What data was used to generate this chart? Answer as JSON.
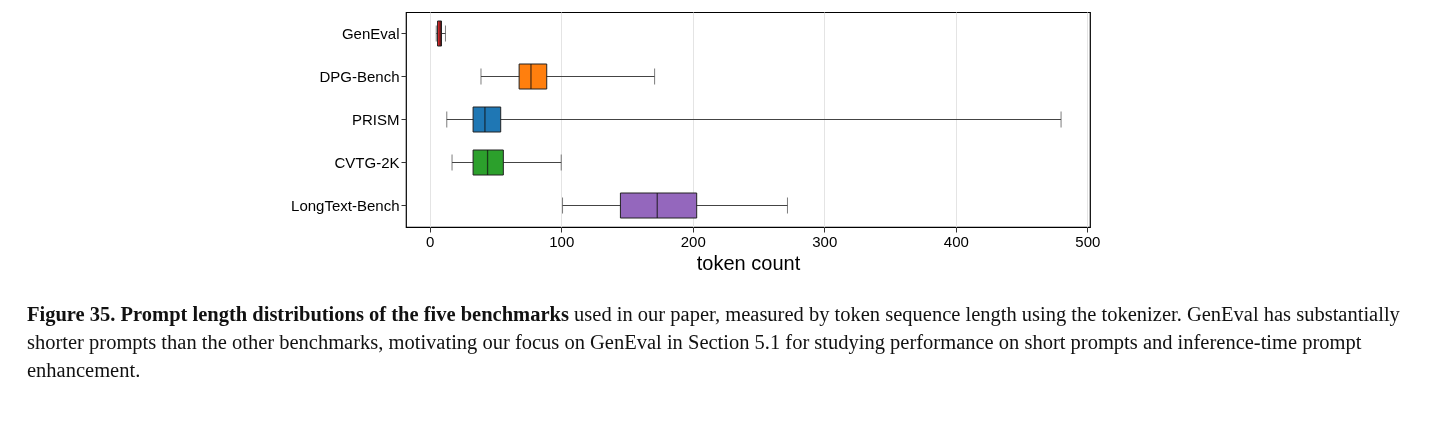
{
  "chart_data": {
    "type": "box",
    "orientation": "horizontal",
    "title": "Figure 35. Prompt length distributions of the five benchmarks",
    "annotations": [
      "used in our paper, measured by token sequence length using the tokenizer. GenEval has substantially shorter prompts than the other benchmarks, motivating our focus on GenEval in Section 5.1 for studying performance on short prompts and inference-time prompt enhancement."
    ],
    "xlabel": "token count",
    "categories": [
      "GenEval",
      "DPG-Bench",
      "PRISM",
      "CVTG-2K",
      "LongText-Bench"
    ],
    "colors": [
      "#d62728",
      "#ff7f0e",
      "#1f77b4",
      "#2ca02c",
      "#9467bd"
    ],
    "boxes": [
      {
        "low": 5,
        "q1": 6,
        "median": 8,
        "q3": 9,
        "high": 12
      },
      {
        "low": 39,
        "q1": 68,
        "median": 77,
        "q3": 89,
        "high": 171
      },
      {
        "low": 13,
        "q1": 33,
        "median": 42,
        "q3": 54,
        "high": 480
      },
      {
        "low": 17,
        "q1": 33,
        "median": 44,
        "q3": 56,
        "high": 100
      },
      {
        "low": 101,
        "q1": 145,
        "median": 173,
        "q3": 203,
        "high": 272
      }
    ],
    "xlim": [
      -18,
      502
    ],
    "xticks": [
      0,
      100,
      200,
      300,
      400,
      500
    ],
    "grid": "x",
    "legend": false
  }
}
